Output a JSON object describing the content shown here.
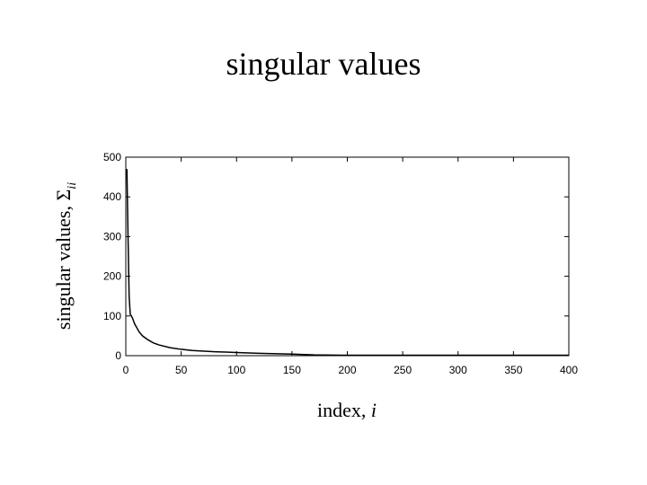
{
  "slide": {
    "title": "singular values"
  },
  "chart_data": {
    "type": "line",
    "title": "",
    "xlabel": "index,",
    "xlabel_var": "i",
    "ylabel": "singular values,",
    "ylabel_symbol": "Σ",
    "ylabel_subscript": "ii",
    "xlim": [
      0,
      400
    ],
    "ylim": [
      0,
      500
    ],
    "xticks": [
      0,
      50,
      100,
      150,
      200,
      250,
      300,
      350,
      400
    ],
    "yticks": [
      0,
      100,
      200,
      300,
      400,
      500
    ],
    "grid": false,
    "series": [
      {
        "x": [
          1,
          2,
          3,
          4,
          5,
          6,
          8,
          10,
          12,
          15,
          20,
          25,
          30,
          40,
          50,
          60,
          80,
          100,
          120,
          150,
          170,
          200,
          250,
          300,
          350,
          400
        ],
        "y": [
          470,
          300,
          150,
          105,
          100,
          95,
          80,
          70,
          60,
          50,
          40,
          32,
          27,
          20,
          16,
          13,
          10,
          8,
          6,
          4,
          2,
          1,
          1,
          1,
          1,
          1
        ]
      }
    ]
  }
}
